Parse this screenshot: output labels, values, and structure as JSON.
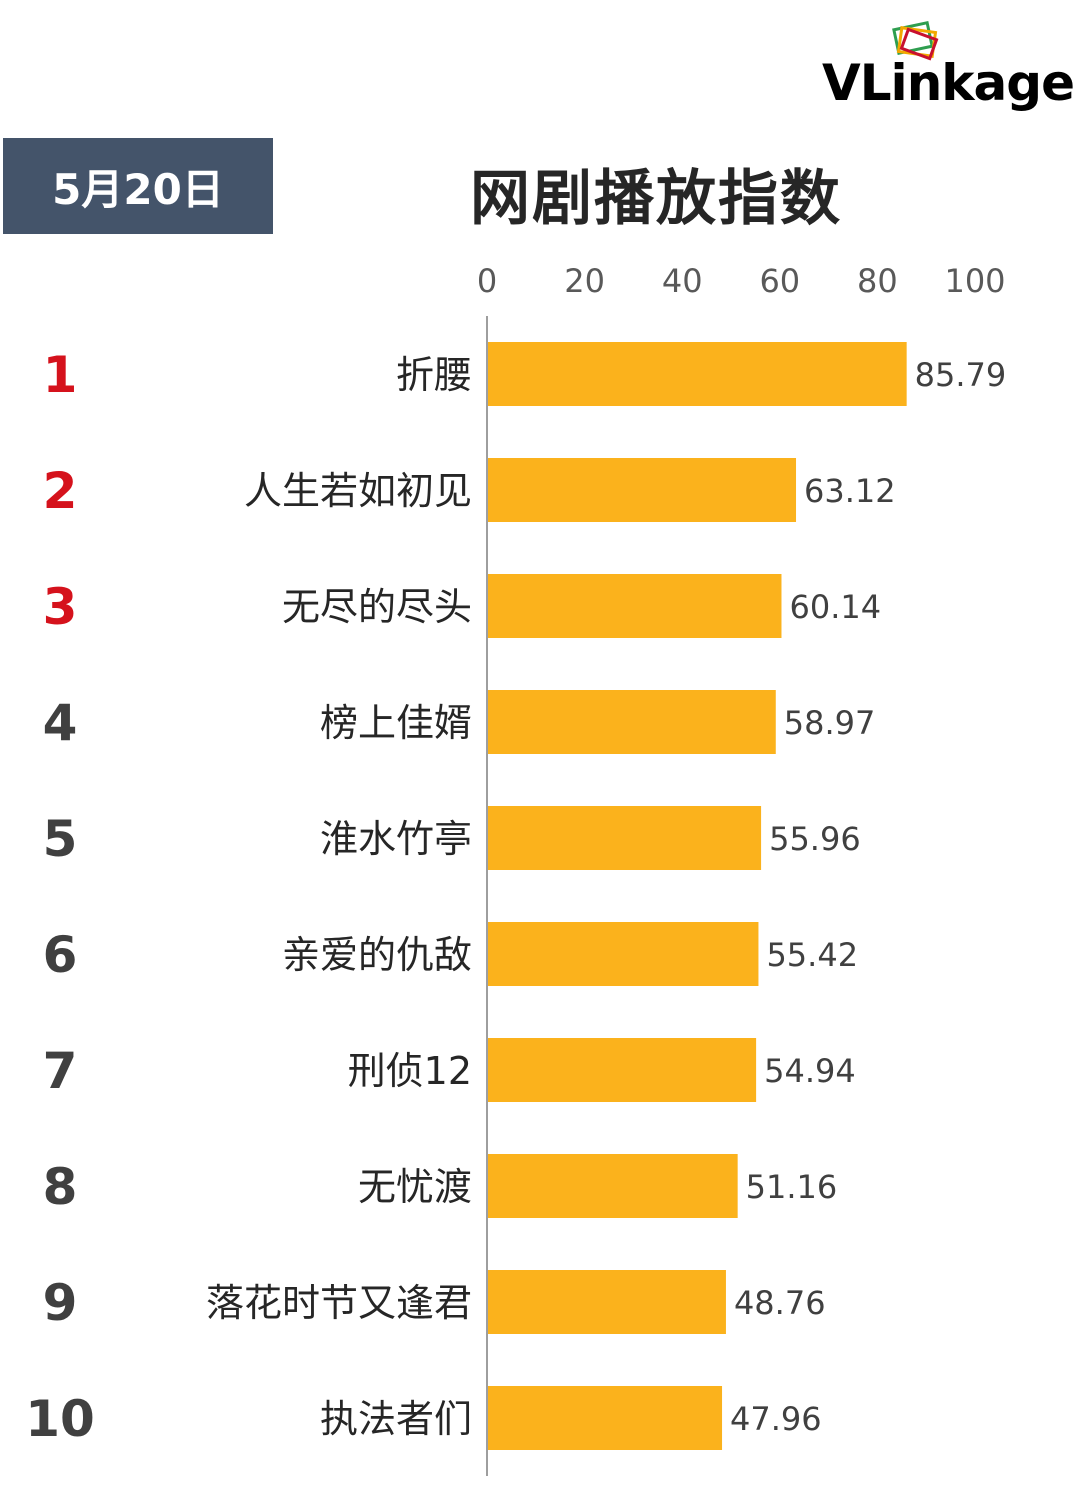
{
  "header": {
    "date_badge": "5月20日",
    "title": "网剧播放指数",
    "logo_text": "VLinkage"
  },
  "colors": {
    "bar": "#fbb21c",
    "badge_bg": "#44546a",
    "rank_top3": "#d5121c",
    "rank_other": "#404040",
    "axis_line": "#9e9e9e"
  },
  "chart_data": {
    "type": "bar",
    "orientation": "horizontal",
    "title": "网剧播放指数",
    "xlim": [
      0,
      100
    ],
    "xticks": [
      "0",
      "20",
      "40",
      "60",
      "80",
      "100"
    ],
    "ranks": [
      "1",
      "2",
      "3",
      "4",
      "5",
      "6",
      "7",
      "8",
      "9",
      "10"
    ],
    "categories": [
      "折腰",
      "人生若如初见",
      "无尽的尽头",
      "榜上佳婿",
      "淮水竹亭",
      "亲爱的仇敌",
      "刑侦12",
      "无忧渡",
      "落花时节又逢君",
      "执法者们"
    ],
    "values": [
      85.79,
      63.12,
      60.14,
      58.97,
      55.96,
      55.42,
      54.94,
      51.16,
      48.76,
      47.96
    ],
    "value_labels": [
      "85.79",
      "63.12",
      "60.14",
      "58.97",
      "55.96",
      "55.42",
      "54.94",
      "51.16",
      "48.76",
      "47.96"
    ],
    "grid": false,
    "legend": "none"
  }
}
